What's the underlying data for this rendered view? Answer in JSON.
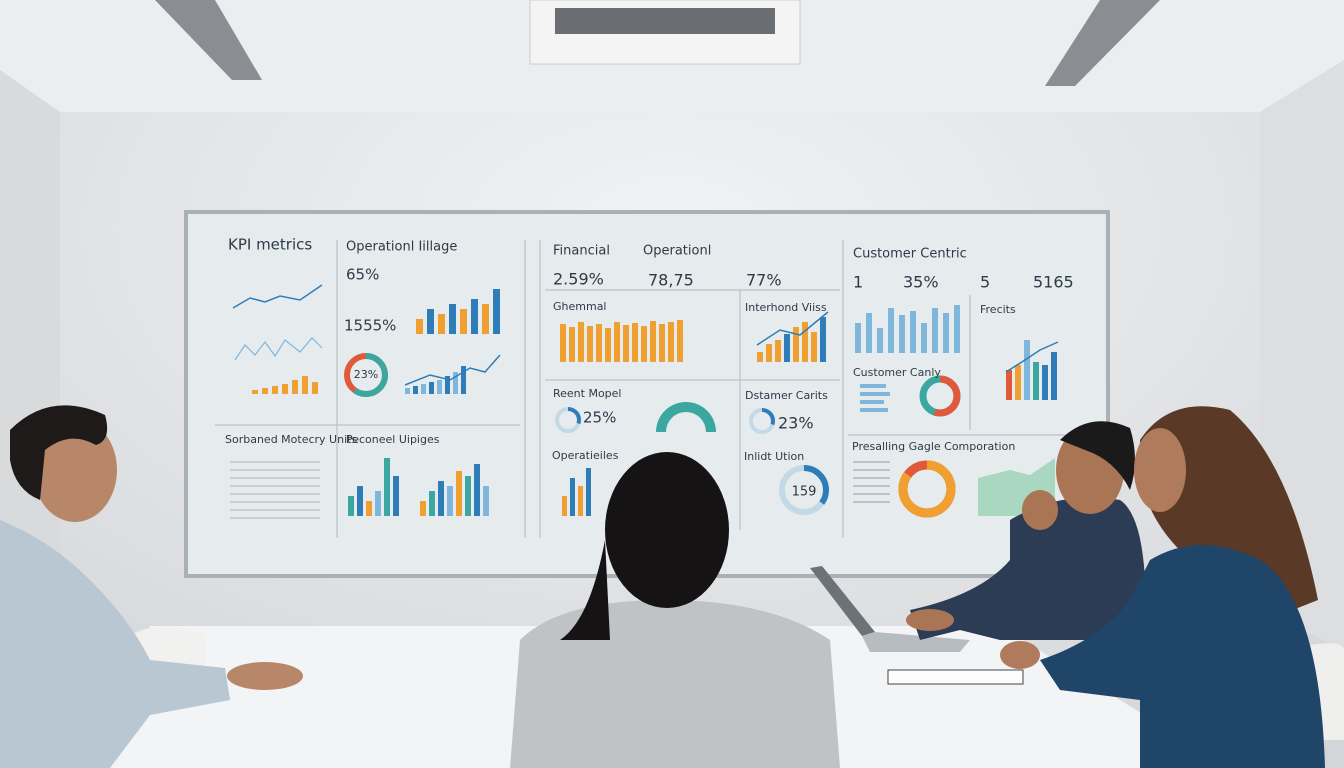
{
  "board": {
    "kpi": {
      "title": "KPI metrics"
    },
    "operational_image": {
      "title": "Operationl Iillage",
      "stat1": "65%",
      "stat2": "1555%",
      "donut": "23%"
    },
    "units": {
      "title": "Sorbaned Motecry Units"
    },
    "peconeel": {
      "title": "Peconeel Uipiges"
    },
    "financial": {
      "title": "Financial",
      "value": "2.59%"
    },
    "operational": {
      "title": "Operationl",
      "value1": "78,75",
      "value2": "77%"
    },
    "ghemmal": {
      "title": "Ghemmal"
    },
    "interhond": {
      "title": "Interhond Viiss"
    },
    "reent": {
      "title": "Reent Mopel",
      "value": "25%"
    },
    "dstamer": {
      "title": "Dstamer Carits",
      "value": "23%"
    },
    "operatieiles": {
      "title": "Operatieiles"
    },
    "inlidt": {
      "title": "Inlidt Ution",
      "value": "159"
    },
    "customer": {
      "title": "Customer Centric",
      "values": [
        "1",
        "35%",
        "5",
        "5165"
      ]
    },
    "frecits": {
      "title": "Frecits"
    },
    "canly": {
      "title": "Customer Canly"
    },
    "presalling": {
      "title": "Presalling Gagle Comporation"
    }
  }
}
